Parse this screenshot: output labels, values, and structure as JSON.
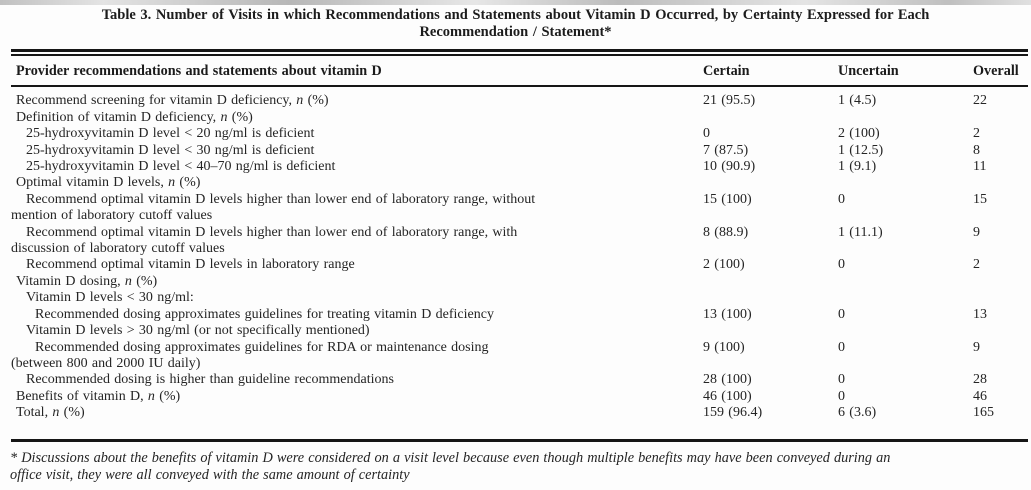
{
  "title": {
    "text": "Table 3. Number of Visits in which Recommendations and Statements about Vitamin D Occurred, by Certainty Expressed for Each\nRecommendation / Statement*"
  },
  "table": {
    "columns": [
      "Provider recommendations and statements about vitamin D",
      "Certain",
      "Uncertain",
      "Overall"
    ],
    "rows": [
      {
        "indent": 0,
        "label": "Recommend screening for vitamin D deficiency, n (%)",
        "certain": "21 (95.5)",
        "uncertain": "1 (4.5)",
        "overall": "22"
      },
      {
        "indent": 0,
        "label": "Definition of vitamin D deficiency, n (%)",
        "certain": "",
        "uncertain": "",
        "overall": ""
      },
      {
        "indent": 1,
        "label": "25-hydroxyvitamin D level < 20 ng/ml is deficient",
        "certain": "0",
        "uncertain": "2 (100)",
        "overall": "2"
      },
      {
        "indent": 1,
        "label": "25-hydroxyvitamin D level < 30 ng/ml is deficient",
        "certain": "7 (87.5)",
        "uncertain": "1 (12.5)",
        "overall": "8"
      },
      {
        "indent": 1,
        "label": "25-hydroxyvitamin D level < 40–70 ng/ml is deficient",
        "certain": "10 (90.9)",
        "uncertain": "1 (9.1)",
        "overall": "11"
      },
      {
        "indent": 0,
        "label": "Optimal vitamin D levels, n (%)",
        "certain": "",
        "uncertain": "",
        "overall": ""
      },
      {
        "indent": 1,
        "label": "Recommend optimal vitamin D levels higher than lower end of laboratory range, without\nmention of laboratory cutoff values",
        "certain": "15 (100)",
        "uncertain": "0",
        "overall": "15"
      },
      {
        "indent": 1,
        "label": "Recommend optimal vitamin D levels higher than lower end of laboratory range, with\ndiscussion of laboratory cutoff values",
        "certain": "8 (88.9)",
        "uncertain": "1 (11.1)",
        "overall": "9"
      },
      {
        "indent": 1,
        "label": "Recommend optimal vitamin D levels in laboratory range",
        "certain": "2 (100)",
        "uncertain": "0",
        "overall": "2"
      },
      {
        "indent": 0,
        "label": "Vitamin D dosing, n (%)",
        "certain": "",
        "uncertain": "",
        "overall": ""
      },
      {
        "indent": 1,
        "label": "Vitamin D levels < 30 ng/ml:",
        "certain": "",
        "uncertain": "",
        "overall": ""
      },
      {
        "indent": 2,
        "label": "Recommended dosing approximates guidelines for treating vitamin D deficiency",
        "certain": "13 (100)",
        "uncertain": "0",
        "overall": "13"
      },
      {
        "indent": 1,
        "label": "Vitamin D levels > 30 ng/ml (or not specifically mentioned)",
        "certain": "",
        "uncertain": "",
        "overall": ""
      },
      {
        "indent": 2,
        "label": "Recommended dosing approximates guidelines for RDA or maintenance dosing\n(between 800 and 2000 IU daily)",
        "certain": "9 (100)",
        "uncertain": "0",
        "overall": "9"
      },
      {
        "indent": 1,
        "label": "Recommended dosing is higher than guideline recommendations",
        "certain": "28 (100)",
        "uncertain": "0",
        "overall": "28"
      },
      {
        "indent": 0,
        "label": "Benefits of vitamin D, n (%)",
        "certain": "46 (100)",
        "uncertain": "0",
        "overall": "46"
      },
      {
        "indent": 0,
        "label": "Total, n (%)",
        "certain": "159 (96.4)",
        "uncertain": "6 (3.6)",
        "overall": "165"
      }
    ]
  },
  "footnote": "* Discussions about the benefits of vitamin D were considered on a visit level because even though multiple benefits may have been conveyed during an\noffice visit, they were all conveyed with the same amount of certainty"
}
